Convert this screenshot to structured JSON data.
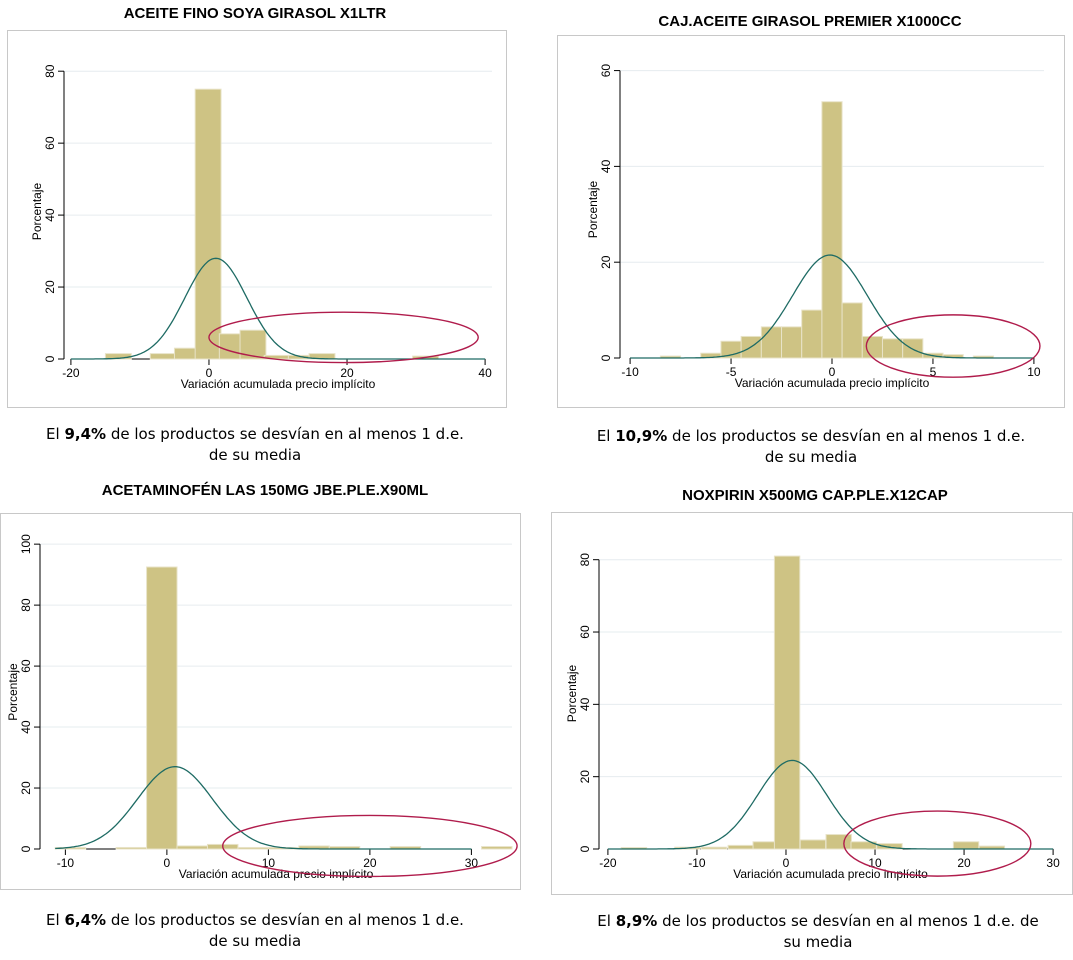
{
  "chart_data": [
    {
      "type": "bar",
      "title": "ACEITE FINO SOYA GIRASOL X1LTR",
      "xlabel": "Variación acumulada precio implícito",
      "ylabel": "Porcentaje",
      "xlim": [
        -21,
        41
      ],
      "ylim": [
        0,
        82
      ],
      "xticks": [
        -20,
        0,
        20,
        40
      ],
      "yticks": [
        0,
        20,
        40,
        60,
        80
      ],
      "bin_width": 3.75,
      "bins": [
        {
          "x0": -15,
          "v": 1.5
        },
        {
          "x0": -8.5,
          "v": 1.5
        },
        {
          "x0": -5,
          "v": 3
        },
        {
          "x0": -2,
          "v": 75
        },
        {
          "x0": 1.5,
          "v": 7
        },
        {
          "x0": 4.5,
          "v": 8
        },
        {
          "x0": 8,
          "v": 1
        },
        {
          "x0": 11.5,
          "v": 1
        },
        {
          "x0": 14.5,
          "v": 1.5
        },
        {
          "x0": 29.5,
          "v": 0.8
        }
      ],
      "normal": {
        "mean": 1,
        "sd": 4.5,
        "peak": 28
      },
      "highlight_ellipse": {
        "cx": 19.5,
        "cy": 6,
        "rx": 19.5,
        "ry": 7
      },
      "caption_pre": "El ",
      "caption_bold": "9,4%",
      "caption_line1": " de los productos se desvían en al menos 1 d.e.",
      "caption_line2": "de su media"
    },
    {
      "type": "bar",
      "title": "CAJ.ACEITE GIRASOL PREMIER  X1000CC",
      "xlabel": "Variación acumulada precio implícito",
      "ylabel": "Porcentaje",
      "xlim": [
        -10.5,
        10.5
      ],
      "ylim": [
        0,
        62
      ],
      "xticks": [
        -10,
        -5,
        0,
        5,
        10
      ],
      "yticks": [
        0,
        20,
        40,
        60
      ],
      "bin_width": 1,
      "bins": [
        {
          "x0": -8.5,
          "v": 0.4
        },
        {
          "x0": -6.5,
          "v": 1
        },
        {
          "x0": -5.5,
          "v": 3.5
        },
        {
          "x0": -4.5,
          "v": 4.5
        },
        {
          "x0": -3.5,
          "v": 6.5
        },
        {
          "x0": -2.5,
          "v": 6.5
        },
        {
          "x0": -1.5,
          "v": 10
        },
        {
          "x0": -0.5,
          "v": 53.5
        },
        {
          "x0": 0.5,
          "v": 11.5
        },
        {
          "x0": 1.5,
          "v": 4.5
        },
        {
          "x0": 2.5,
          "v": 4
        },
        {
          "x0": 3.5,
          "v": 4
        },
        {
          "x0": 4.5,
          "v": 1
        },
        {
          "x0": 5.5,
          "v": 0.7
        },
        {
          "x0": 7,
          "v": 0.4
        }
      ],
      "normal": {
        "mean": -0.1,
        "sd": 1.85,
        "peak": 21.5
      },
      "highlight_ellipse": {
        "cx": 6,
        "cy": 2.5,
        "rx": 4.3,
        "ry": 6.5
      },
      "caption_pre": "El ",
      "caption_bold": "10,9%",
      "caption_line1": " de los productos se desvían en al menos 1 d.e.",
      "caption_line2": "de su media"
    },
    {
      "type": "bar",
      "title": "ACETAMINOFÉN LAS 150MG JBE.PLE.X90ML",
      "xlabel": "Variación acumulada precio implícito",
      "ylabel": "Porcentaje",
      "xlim": [
        -12.5,
        34
      ],
      "ylim": [
        0,
        103
      ],
      "xticks": [
        -10,
        0,
        10,
        20,
        30
      ],
      "yticks": [
        0,
        20,
        40,
        60,
        80,
        100
      ],
      "bin_width": 3,
      "bins": [
        {
          "x0": -11,
          "v": 0.5
        },
        {
          "x0": -5,
          "v": 0.5
        },
        {
          "x0": -2,
          "v": 92.5
        },
        {
          "x0": 1,
          "v": 1
        },
        {
          "x0": 4,
          "v": 1.5
        },
        {
          "x0": 7,
          "v": 0.5
        },
        {
          "x0": 10,
          "v": 0.5
        },
        {
          "x0": 13,
          "v": 1
        },
        {
          "x0": 16,
          "v": 0.8
        },
        {
          "x0": 22,
          "v": 0.8
        },
        {
          "x0": 31,
          "v": 0.8
        }
      ],
      "normal": {
        "mean": 0.8,
        "sd": 3.7,
        "peak": 27
      },
      "highlight_ellipse": {
        "cx": 20,
        "cy": 1,
        "rx": 14.5,
        "ry": 10
      },
      "caption_pre": "El ",
      "caption_bold": "6,4%",
      "caption_line1": " de los productos se desvían en al menos 1 d.e.",
      "caption_line2": "de su media"
    },
    {
      "type": "bar",
      "title": "NOXPIRIN X500MG CAP.PLE.X12CAP",
      "xlabel": "Variación acumulada precio implícito",
      "ylabel": "Porcentaje",
      "xlim": [
        -21,
        31
      ],
      "ylim": [
        0,
        86
      ],
      "xticks": [
        -20,
        -10,
        0,
        10,
        20,
        30
      ],
      "yticks": [
        0,
        20,
        40,
        60,
        80
      ],
      "bin_width": 2.85,
      "bins": [
        {
          "x0": -18.5,
          "v": 0.4
        },
        {
          "x0": -12.5,
          "v": 0.5
        },
        {
          "x0": -9.5,
          "v": 0.5
        },
        {
          "x0": -6.5,
          "v": 1
        },
        {
          "x0": -3.7,
          "v": 2
        },
        {
          "x0": -1.3,
          "v": 81
        },
        {
          "x0": 1.6,
          "v": 2.5
        },
        {
          "x0": 4.5,
          "v": 4
        },
        {
          "x0": 7.3,
          "v": 2
        },
        {
          "x0": 10.2,
          "v": 1.5
        },
        {
          "x0": 18.8,
          "v": 2
        },
        {
          "x0": 21.7,
          "v": 0.8
        }
      ],
      "normal": {
        "mean": 0.7,
        "sd": 3.9,
        "peak": 24.5
      },
      "highlight_ellipse": {
        "cx": 17,
        "cy": 1.5,
        "rx": 10.5,
        "ry": 9
      },
      "caption_pre": "El ",
      "caption_bold": "8,9%",
      "caption_line1": " de los productos se desvían en al menos 1 d.e. de",
      "caption_line2": "su media"
    }
  ],
  "colors": {
    "bar_fill": "#cec384",
    "bar_stroke": "#e8e3c8",
    "normal_line": "#1e6b64",
    "ellipse": "#b01c4c",
    "grid": "#e6ecef",
    "frame": "#c8c8c8"
  }
}
